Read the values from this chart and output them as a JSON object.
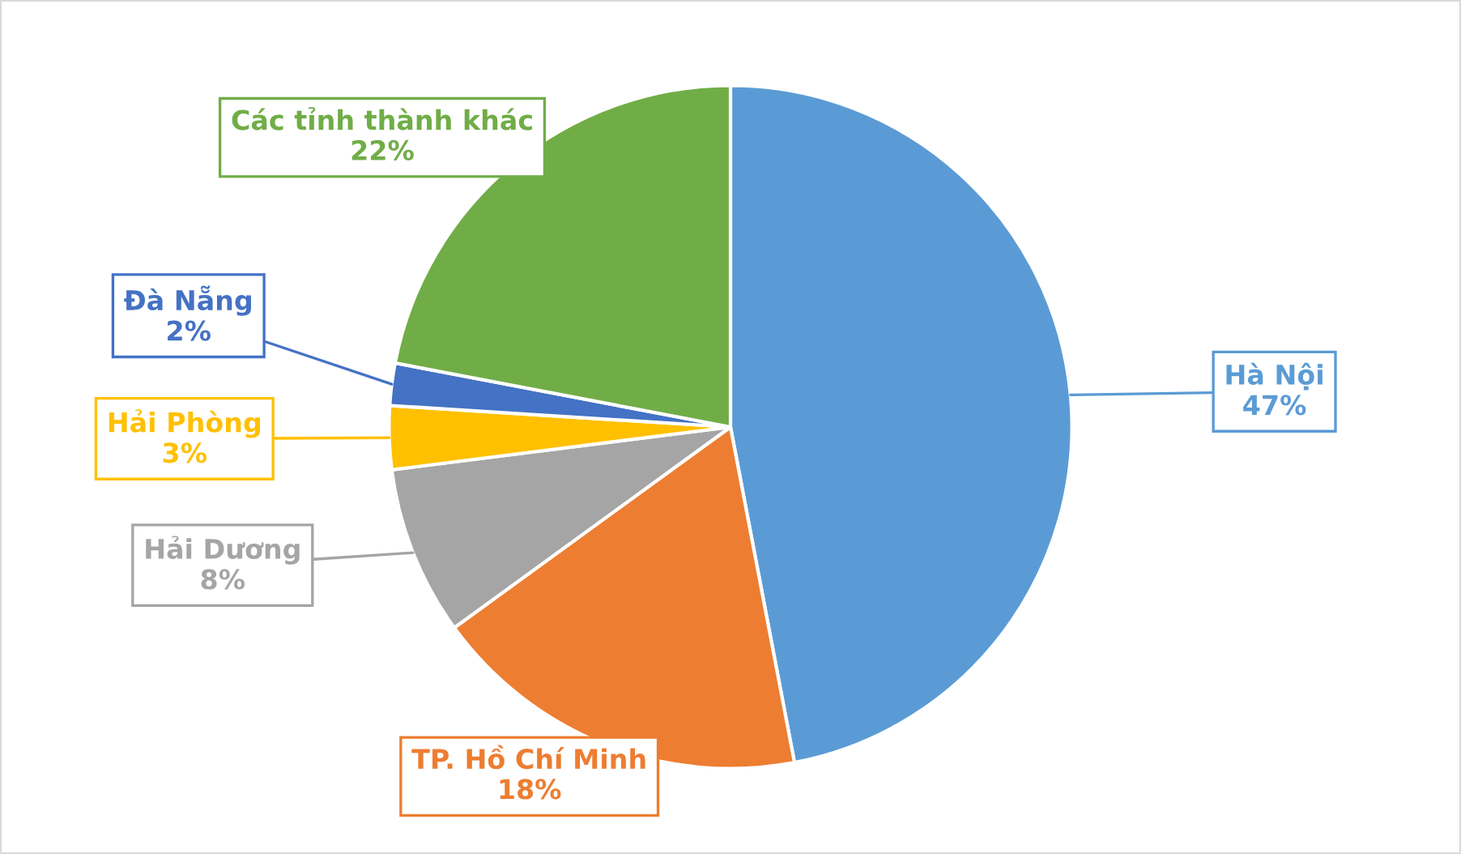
{
  "chart_data": {
    "type": "pie",
    "categories": [
      "Hà Nội",
      "TP. Hồ Chí Minh",
      "Hải Dương",
      "Hải Phòng",
      "Đà Nẵng",
      "Các tỉnh thành khác"
    ],
    "values": [
      47,
      18,
      8,
      3,
      2,
      22
    ],
    "value_labels": [
      "47%",
      "18%",
      "8%",
      "3%",
      "2%",
      "22%"
    ],
    "colors": [
      "#5b9bd5",
      "#ed7d31",
      "#a5a5a5",
      "#ffc000",
      "#4472c4",
      "#70ad47"
    ],
    "legend": false
  }
}
